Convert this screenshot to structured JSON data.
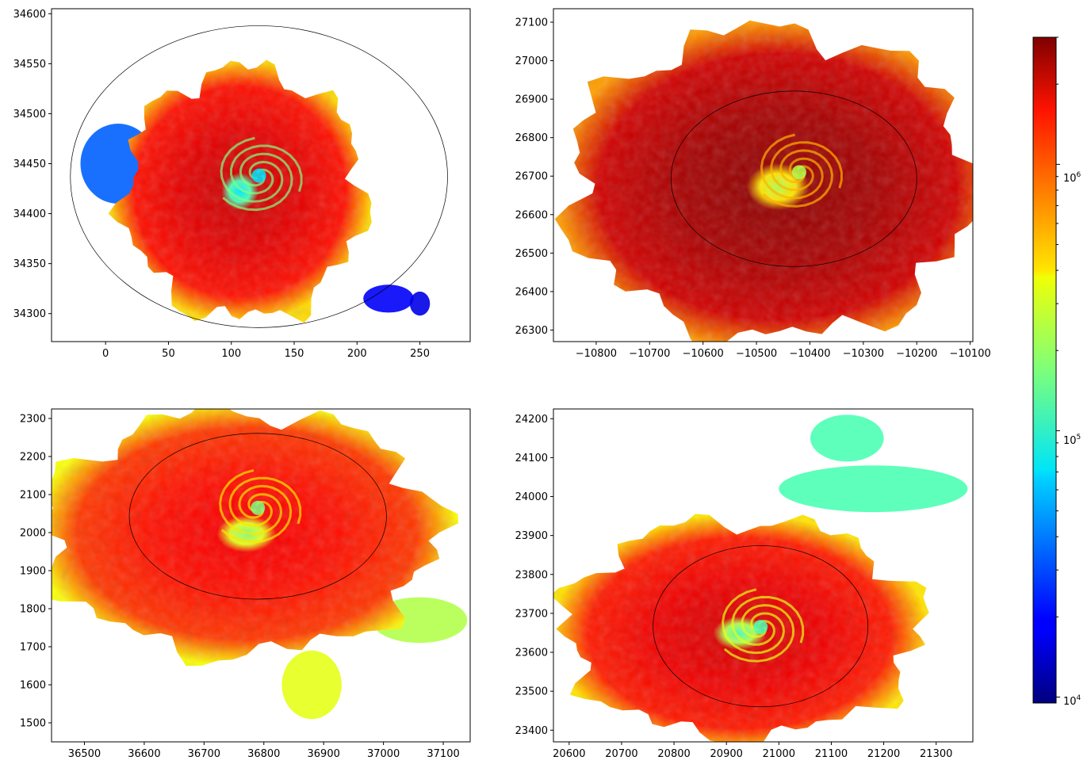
{
  "figure": {
    "colors": {
      "axes_edge": "#000000",
      "ellipse": "#000000",
      "background": "#ffffff"
    }
  },
  "chart_data": [
    {
      "type": "heatmap",
      "title": "",
      "xlabel": "",
      "ylabel": "",
      "xlim": [
        -43,
        290
      ],
      "ylim": [
        34272,
        34605
      ],
      "xticks": [
        0,
        50,
        100,
        150,
        200,
        250
      ],
      "xtick_labels": [
        "0",
        "50",
        "100",
        "150",
        "200",
        "250"
      ],
      "yticks": [
        34300,
        34350,
        34400,
        34450,
        34500,
        34550,
        34600
      ],
      "ytick_labels": [
        "34300",
        "34350",
        "34400",
        "34450",
        "34500",
        "34550",
        "34600"
      ],
      "ellipse": {
        "cx": 122,
        "cy": 34437,
        "rx": 150,
        "ry": 151
      },
      "center": [
        122,
        34438
      ],
      "blob": {
        "cx": 110,
        "cy": 34420,
        "rx": 95,
        "ry": 125
      },
      "core_level": 0.35,
      "outer_level": 0.86,
      "extras": [
        {
          "cx": 10,
          "cy": 34450,
          "rx": 30,
          "ry": 40,
          "level": 0.22
        },
        {
          "cx": 225,
          "cy": 34315,
          "rx": 20,
          "ry": 14,
          "level": 0.12
        },
        {
          "cx": 250,
          "cy": 34310,
          "rx": 8,
          "ry": 12,
          "level": 0.1
        }
      ],
      "grid": false
    },
    {
      "type": "heatmap",
      "title": "",
      "xlabel": "",
      "ylabel": "",
      "xlim": [
        -10880,
        -10095
      ],
      "ylim": [
        26270,
        27135
      ],
      "xticks": [
        -10800,
        -10700,
        -10600,
        -10500,
        -10400,
        -10300,
        -10200,
        -10100
      ],
      "xtick_labels": [
        "−10800",
        "−10700",
        "−10600",
        "−10500",
        "−10400",
        "−10300",
        "−10200",
        "−10100"
      ],
      "yticks": [
        26300,
        26400,
        26500,
        26600,
        26700,
        26800,
        26900,
        27000,
        27100
      ],
      "ytick_labels": [
        "26300",
        "26400",
        "26500",
        "26600",
        "26700",
        "26800",
        "26900",
        "27000",
        "27100"
      ],
      "ellipse": {
        "cx": -10430,
        "cy": 26693,
        "rx": 230,
        "ry": 228
      },
      "center": [
        -10420,
        26710
      ],
      "blob": {
        "cx": -10470,
        "cy": 26680,
        "rx": 380,
        "ry": 400
      },
      "core_level": 0.55,
      "outer_level": 0.92,
      "extras": [],
      "grid": false
    },
    {
      "type": "heatmap",
      "title": "",
      "xlabel": "",
      "ylabel": "",
      "xlim": [
        36445,
        37145
      ],
      "ylim": [
        1450,
        2325
      ],
      "xticks": [
        36500,
        36600,
        36700,
        36800,
        36900,
        37000,
        37100
      ],
      "xtick_labels": [
        "36500",
        "36600",
        "36700",
        "36800",
        "36900",
        "37000",
        "37100"
      ],
      "yticks": [
        1500,
        1600,
        1700,
        1800,
        1900,
        2000,
        2100,
        2200,
        2300
      ],
      "ytick_labels": [
        "1500",
        "1600",
        "1700",
        "1800",
        "1900",
        "2000",
        "2100",
        "2200",
        "2300"
      ],
      "ellipse": {
        "cx": 36790,
        "cy": 2043,
        "rx": 215,
        "ry": 218
      },
      "center": [
        36790,
        2065
      ],
      "blob": {
        "cx": 36760,
        "cy": 2000,
        "rx": 330,
        "ry": 320
      },
      "core_level": 0.5,
      "outer_level": 0.82,
      "extras": [
        {
          "cx": 37060,
          "cy": 1770,
          "rx": 80,
          "ry": 60,
          "level": 0.55
        },
        {
          "cx": 36880,
          "cy": 1600,
          "rx": 50,
          "ry": 90,
          "level": 0.6
        }
      ],
      "grid": false
    },
    {
      "type": "heatmap",
      "title": "",
      "xlabel": "",
      "ylabel": "",
      "xlim": [
        20570,
        21370
      ],
      "ylim": [
        23370,
        24225
      ],
      "xticks": [
        20600,
        20700,
        20800,
        20900,
        21000,
        21100,
        21200,
        21300
      ],
      "xtick_labels": [
        "20600",
        "20700",
        "20800",
        "20900",
        "21000",
        "21100",
        "21200",
        "21300"
      ],
      "yticks": [
        23400,
        23500,
        23600,
        23700,
        23800,
        23900,
        24000,
        24100,
        24200
      ],
      "ytick_labels": [
        "23400",
        "23500",
        "23600",
        "23700",
        "23800",
        "23900",
        "24000",
        "24100",
        "24200"
      ],
      "ellipse": {
        "cx": 20965,
        "cy": 23667,
        "rx": 205,
        "ry": 207
      },
      "center": [
        20965,
        23665
      ],
      "blob": {
        "cx": 20930,
        "cy": 23660,
        "rx": 340,
        "ry": 280
      },
      "core_level": 0.45,
      "outer_level": 0.85,
      "extras": [
        {
          "cx": 21180,
          "cy": 24020,
          "rx": 180,
          "ry": 60,
          "level": 0.45
        },
        {
          "cx": 21130,
          "cy": 24150,
          "rx": 70,
          "ry": 60,
          "level": 0.45
        }
      ],
      "grid": false
    }
  ],
  "colorbar": {
    "cmap": "jet",
    "scale": "log",
    "range": [
      9500,
      3000000
    ],
    "major_ticks": [
      10000,
      100000,
      1000000
    ],
    "tick_label_parts": [
      {
        "base": "10",
        "exp": "4"
      },
      {
        "base": "10",
        "exp": "5"
      },
      {
        "base": "10",
        "exp": "6"
      }
    ]
  }
}
